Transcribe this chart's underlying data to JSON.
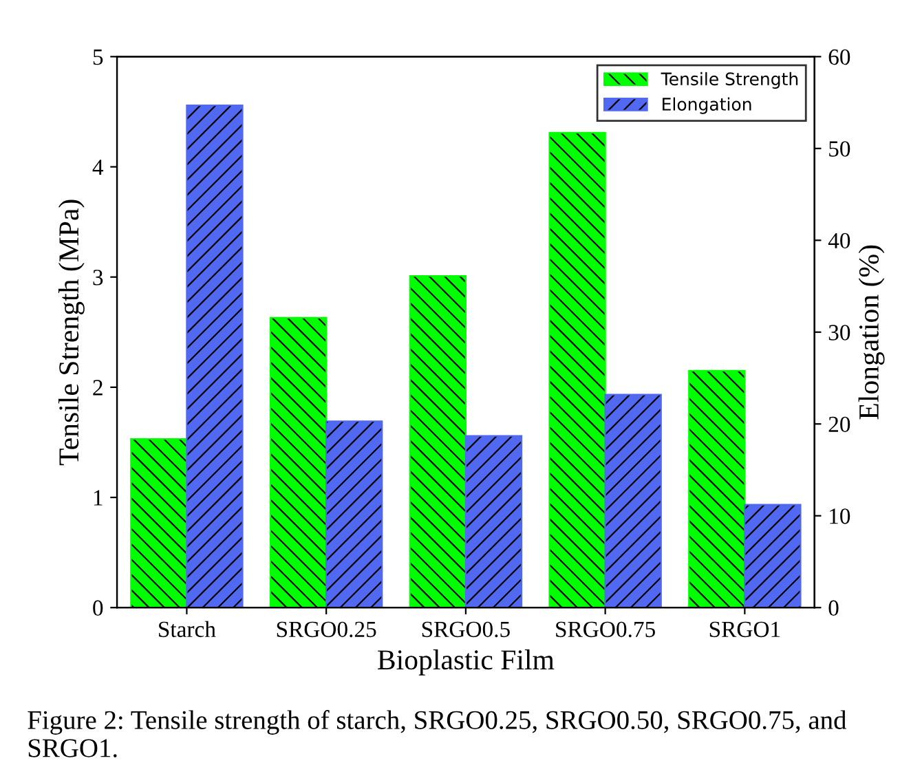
{
  "chart_data": {
    "type": "bar",
    "categories": [
      "Starch",
      "SRGO0.25",
      "SRGO0.5",
      "SRGO0.75",
      "SRGO1"
    ],
    "xlabel": "Bioplastic Film",
    "ylabel": "Tensile Strength (MPa)",
    "y2label": "Elongation (%)",
    "series": [
      {
        "name": "Tensile Strength",
        "color": "#00ff00",
        "values": [
          1.53,
          2.63,
          3.01,
          4.31,
          2.15
        ]
      },
      {
        "name": "Elongation",
        "color": "#5169f0",
        "axis": "y2",
        "values": [
          54.7,
          20.3,
          18.7,
          23.2,
          11.2
        ]
      }
    ],
    "ylim": [
      0,
      5
    ],
    "yticks": [
      0,
      1,
      2,
      3,
      4,
      5
    ],
    "y2lim": [
      0,
      60
    ],
    "y2ticks": [
      0,
      10,
      20,
      30,
      40,
      50,
      60
    ],
    "legend": "top right",
    "grid": false,
    "annotations": [
      "Figure 2: Tensile strength of starch, SRGO0.25, SRGO0.50, SRGO0.75, and SRGO1."
    ]
  }
}
